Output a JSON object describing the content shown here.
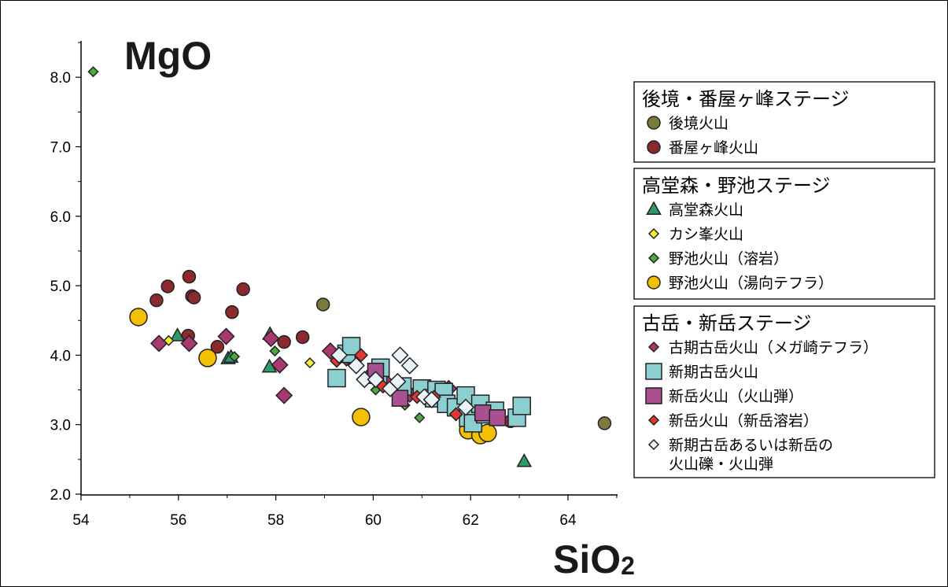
{
  "chart_data": {
    "type": "scatter",
    "ylabel_main": "MgO",
    "xlabel_main": "SiO",
    "xlabel_sub": "2",
    "xlim": [
      54,
      65
    ],
    "ylim": [
      2.0,
      8.5
    ],
    "xticks": [
      "54",
      "56",
      "58",
      "60",
      "62",
      "64"
    ],
    "yticks": [
      "2.0",
      "3.0",
      "4.0",
      "5.0",
      "6.0",
      "7.0",
      "8.0"
    ],
    "groups": [
      {
        "title": "後境・番屋ヶ峰ステージ",
        "series": [
          {
            "name": "後境火山",
            "marker": "circle",
            "size": "small",
            "color": "#7a7a3c",
            "points": [
              [
                58.97,
                4.73
              ],
              [
                64.75,
                3.02
              ]
            ]
          },
          {
            "name": "番屋ヶ峰火山",
            "marker": "circle",
            "size": "small",
            "color": "#8b2a2e",
            "points": [
              [
                55.55,
                4.79
              ],
              [
                55.78,
                4.99
              ],
              [
                56.22,
                5.13
              ],
              [
                56.28,
                4.85
              ],
              [
                56.32,
                4.83
              ],
              [
                57.33,
                4.95
              ],
              [
                57.1,
                4.62
              ],
              [
                56.2,
                4.28
              ],
              [
                56.8,
                4.12
              ],
              [
                58.55,
                4.26
              ],
              [
                58.17,
                4.19
              ],
              [
                62.3,
                3.25
              ],
              [
                62.82,
                3.05
              ]
            ]
          }
        ]
      },
      {
        "title": "高堂森・野池ステージ",
        "series": [
          {
            "name": "高堂森火山",
            "marker": "triangle",
            "size": "small",
            "color": "#2e9a6a",
            "points": [
              [
                55.98,
                4.28
              ],
              [
                57.02,
                3.95
              ],
              [
                57.08,
                3.97
              ],
              [
                57.88,
                4.3
              ],
              [
                57.87,
                3.83
              ],
              [
                63.1,
                2.47
              ]
            ]
          },
          {
            "name": "カシ峯火山",
            "marker": "diamond",
            "size": "tiny",
            "color": "#f4ec3a",
            "points": [
              [
                55.8,
                4.21
              ],
              [
                58.7,
                3.89
              ]
            ]
          },
          {
            "name": "野池火山（溶岩）",
            "marker": "diamond",
            "size": "tiny",
            "color": "#4ea840",
            "points": [
              [
                54.25,
                8.08
              ],
              [
                57.15,
                3.98
              ],
              [
                57.98,
                4.06
              ],
              [
                60.05,
                3.5
              ],
              [
                60.65,
                3.28
              ],
              [
                60.95,
                3.1
              ]
            ]
          },
          {
            "name": "野池火山（湯向テフラ）",
            "marker": "circle",
            "size": "large",
            "color": "#f5c000",
            "points": [
              [
                55.18,
                4.55
              ],
              [
                56.6,
                3.96
              ],
              [
                59.75,
                3.11
              ],
              [
                61.95,
                2.92
              ],
              [
                62.2,
                2.85
              ],
              [
                62.35,
                2.88
              ]
            ]
          }
        ]
      },
      {
        "title": "古岳・新岳ステージ",
        "series": [
          {
            "name": "古期古岳火山（メガ崎テフラ）",
            "marker": "diamond",
            "size": "medium",
            "color": "#a8386e",
            "points": [
              [
                55.6,
                4.17
              ],
              [
                56.22,
                4.17
              ],
              [
                56.98,
                4.27
              ],
              [
                57.9,
                4.24
              ],
              [
                58.08,
                3.86
              ],
              [
                58.17,
                3.42
              ],
              [
                59.12,
                4.06
              ],
              [
                59.45,
                3.96
              ],
              [
                59.95,
                3.72
              ],
              [
                60.25,
                3.62
              ],
              [
                60.75,
                3.44
              ],
              [
                61.15,
                3.38
              ],
              [
                61.55,
                3.52
              ]
            ]
          },
          {
            "name": "新期古岳火山",
            "marker": "square",
            "size": "large",
            "color": "#8ccfd0",
            "points": [
              [
                59.25,
                3.67
              ],
              [
                59.45,
                4.02
              ],
              [
                59.55,
                4.13
              ],
              [
                60.1,
                3.72
              ],
              [
                60.15,
                3.82
              ],
              [
                60.6,
                3.55
              ],
              [
                61.0,
                3.52
              ],
              [
                61.25,
                3.38
              ],
              [
                61.3,
                3.5
              ],
              [
                61.45,
                3.47
              ],
              [
                61.5,
                3.3
              ],
              [
                61.7,
                3.25
              ],
              [
                61.9,
                3.42
              ],
              [
                61.95,
                3.1
              ],
              [
                62.05,
                3.02
              ],
              [
                62.2,
                3.3
              ],
              [
                62.3,
                3.15
              ],
              [
                62.5,
                3.2
              ],
              [
                62.95,
                3.1
              ],
              [
                63.05,
                3.27
              ]
            ]
          },
          {
            "name": "新岳火山（火山弾）",
            "marker": "square",
            "size": "medium",
            "color": "#a85090",
            "points": [
              [
                60.05,
                3.77
              ],
              [
                60.55,
                3.38
              ],
              [
                62.25,
                3.17
              ],
              [
                62.55,
                3.1
              ]
            ]
          },
          {
            "name": "新岳火山（新岳溶岩）",
            "marker": "diamond",
            "size": "small",
            "color": "#e03830",
            "points": [
              [
                59.75,
                4.0
              ],
              [
                59.25,
                3.92
              ],
              [
                60.2,
                3.55
              ],
              [
                60.9,
                3.4
              ],
              [
                61.25,
                3.4
              ],
              [
                61.7,
                3.15
              ]
            ]
          },
          {
            "name": "新期古岳あるいは新岳の\n火山礫・火山弾",
            "marker": "diamond",
            "size": "medium",
            "color": "#eaf4f8",
            "points": [
              [
                59.3,
                4.0
              ],
              [
                59.65,
                3.85
              ],
              [
                59.82,
                3.65
              ],
              [
                60.05,
                3.65
              ],
              [
                60.35,
                3.52
              ],
              [
                60.5,
                3.62
              ],
              [
                60.55,
                4.0
              ],
              [
                60.75,
                3.85
              ],
              [
                61.05,
                3.4
              ],
              [
                61.2,
                3.36
              ],
              [
                61.9,
                3.25
              ]
            ]
          }
        ]
      }
    ]
  }
}
